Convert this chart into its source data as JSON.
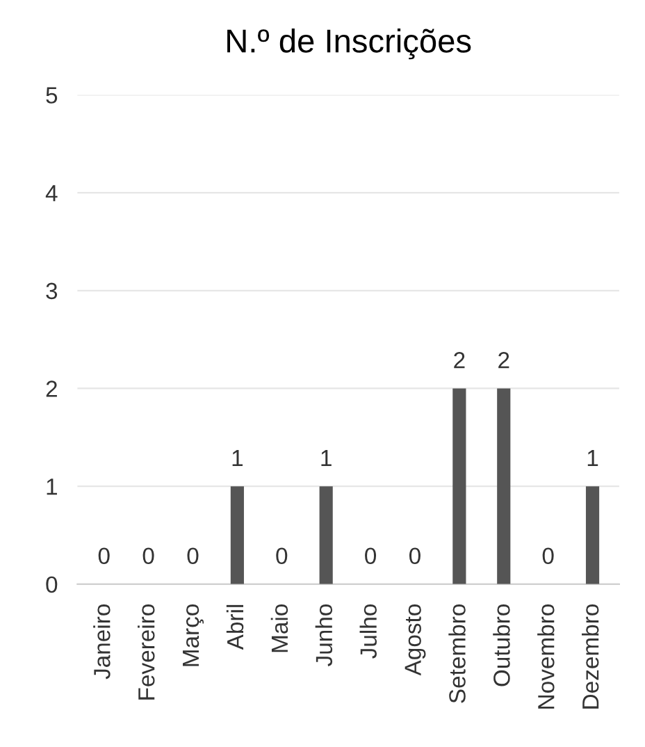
{
  "chart_data": {
    "type": "bar",
    "title": "N.º de Inscrições",
    "categories": [
      "Janeiro",
      "Fevereiro",
      "Março",
      "Abril",
      "Maio",
      "Junho",
      "Julho",
      "Agosto",
      "Setembro",
      "Outubro",
      "Novembro",
      "Dezembro"
    ],
    "values": [
      0,
      0,
      0,
      1,
      0,
      1,
      0,
      0,
      2,
      2,
      0,
      1
    ],
    "color": "#555555",
    "ylim": [
      0,
      5
    ],
    "yticks": [
      0,
      1,
      2,
      3,
      4,
      5
    ],
    "grid": "y",
    "data_labels": true
  }
}
